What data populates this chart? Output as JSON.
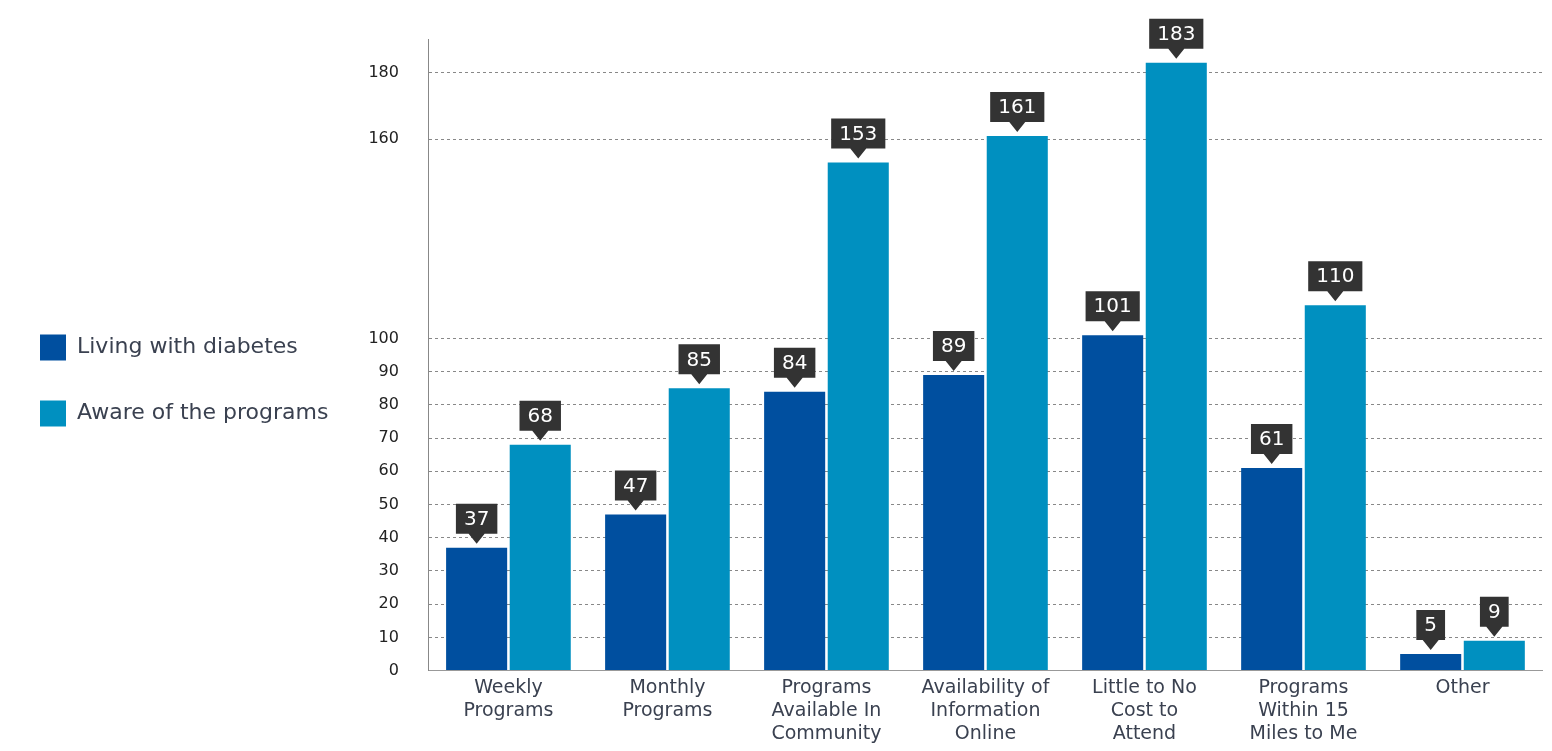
{
  "chart_data": {
    "type": "bar",
    "categories": [
      "Weekly Programs",
      "Monthly Programs",
      "Programs Available In Community",
      "Availability of Information Online",
      "Little to No Cost to Attend",
      "Programs Within 15 Miles to Me",
      "Other"
    ],
    "series": [
      {
        "name": "Living with diabetes",
        "color": "#004f9f",
        "values": [
          37,
          47,
          84,
          89,
          101,
          61,
          5
        ]
      },
      {
        "name": "Aware of the programs",
        "color": "#0090c0",
        "values": [
          68,
          85,
          153,
          161,
          183,
          110,
          9
        ]
      }
    ],
    "ylim": [
      0,
      190
    ],
    "yticks": [
      0,
      10,
      20,
      30,
      40,
      50,
      60,
      70,
      80,
      90,
      100,
      160,
      180
    ],
    "grid": "y",
    "legend": "left",
    "data_labels": true
  }
}
